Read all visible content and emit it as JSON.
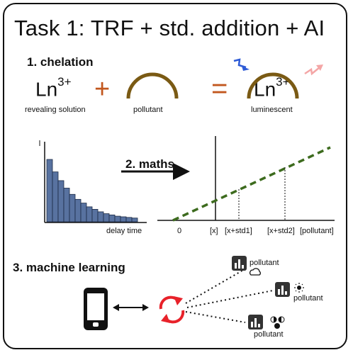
{
  "title": "Task 1: TRF + std. addition + AI",
  "steps": {
    "chelation": "1. chelation",
    "maths": "2. maths",
    "machine_learning": "3. machine learning"
  },
  "chelation": {
    "ln_base": "Ln",
    "ln_charge": "3+",
    "plus": "+",
    "equals": "=",
    "revealing_label": "revealing solution",
    "pollutant_label": "pollutant",
    "luminescent_label": "luminescent",
    "colors": {
      "operator": "#c2571e",
      "ligand": "#7a5a14",
      "arrow_in": "#2e5bd6",
      "arrow_out": "#f4a6a6"
    }
  },
  "decay_plot": {
    "y_axis_label": "I",
    "x_axis_label": "delay time",
    "bar_color": "#5872a0",
    "values": [
      1.0,
      0.8,
      0.66,
      0.54,
      0.44,
      0.36,
      0.3,
      0.24,
      0.2,
      0.16,
      0.13,
      0.11,
      0.09,
      0.08,
      0.07,
      0.06
    ]
  },
  "addition_plot": {
    "ticks": [
      "0",
      "[x]",
      "[x+std1]",
      "[x+std2]",
      "[pollutant]"
    ],
    "line_color": "#3d6b1e",
    "line_style": "dashed"
  },
  "machine_learning": {
    "device_icon": "smartphone-icon",
    "link_icon": "double-arrow-icon",
    "sync_icon": "sync-arrows-icon",
    "sync_color": "#e8222a",
    "conditions": [
      {
        "label": "pollutant",
        "chart_icon": "bar-chart-icon",
        "condition_icon": "cloud-icon"
      },
      {
        "label": "pollutant",
        "chart_icon": "bar-chart-icon",
        "condition_icon": "sun-icon"
      },
      {
        "label": "pollutant",
        "chart_icon": "bar-chart-icon",
        "condition_icon": "moon-phases-icon"
      }
    ]
  }
}
